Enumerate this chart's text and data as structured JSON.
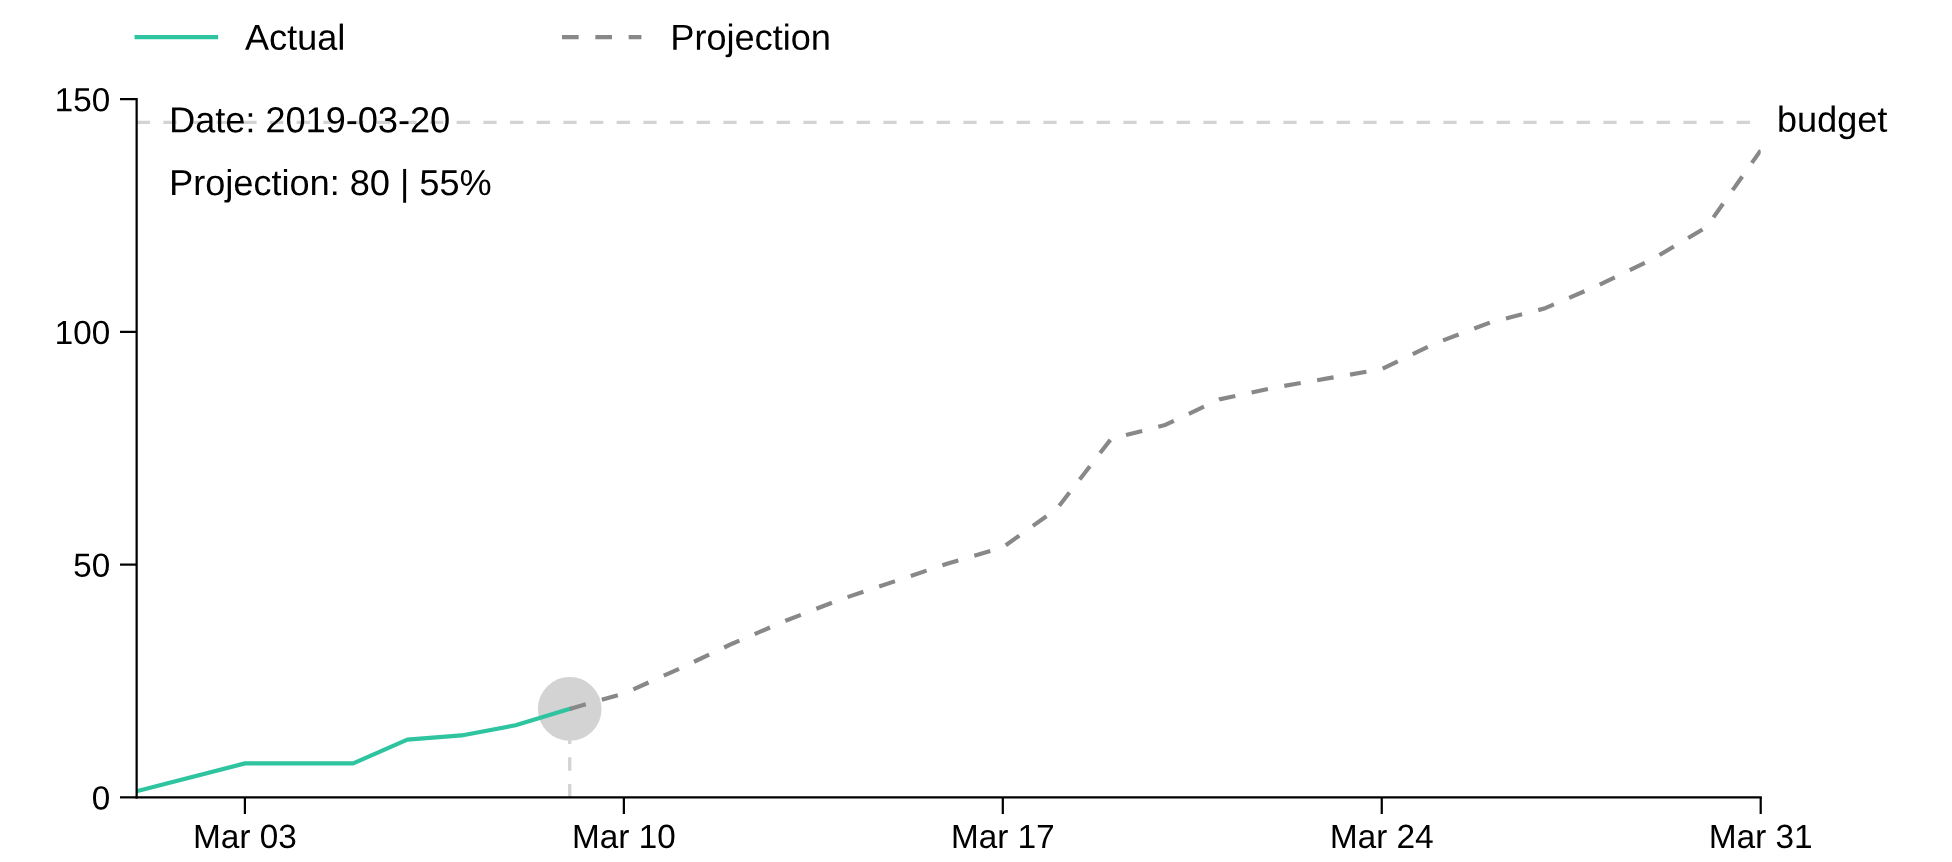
{
  "chart_data": {
    "type": "line",
    "xlim": [
      "2019-03-01",
      "2019-03-31"
    ],
    "xticks": [
      {
        "value": "2019-03-03",
        "label": "Mar 03"
      },
      {
        "value": "2019-03-10",
        "label": "Mar 10"
      },
      {
        "value": "2019-03-17",
        "label": "Mar 17"
      },
      {
        "value": "2019-03-24",
        "label": "Mar 24"
      },
      {
        "value": "2019-03-31",
        "label": "Mar 31"
      }
    ],
    "ylim": [
      0,
      150
    ],
    "yticks": [
      0,
      50,
      100,
      150
    ],
    "grid": false,
    "legend": "top",
    "series": [
      {
        "name": "Actual",
        "color": "#2ec4a0",
        "line_style": "solid",
        "x": [
          "2019-03-01",
          "2019-03-03",
          "2019-03-04",
          "2019-03-05",
          "2019-03-06",
          "2019-03-07",
          "2019-03-08",
          "2019-03-09"
        ],
        "values": [
          1.3,
          7.3,
          7.3,
          7.3,
          12.4,
          13.3,
          15.5,
          19
        ]
      },
      {
        "name": "Projection",
        "color": "#888888",
        "line_style": "dashed",
        "x": [
          "2019-03-09",
          "2019-03-10",
          "2019-03-11",
          "2019-03-12",
          "2019-03-13",
          "2019-03-14",
          "2019-03-15",
          "2019-03-16",
          "2019-03-17",
          "2019-03-18",
          "2019-03-19",
          "2019-03-20",
          "2019-03-21",
          "2019-03-22",
          "2019-03-23",
          "2019-03-24",
          "2019-03-25",
          "2019-03-26",
          "2019-03-27",
          "2019-03-28",
          "2019-03-29",
          "2019-03-30",
          "2019-03-31"
        ],
        "values": [
          19,
          22.3,
          27.5,
          33,
          38,
          42.5,
          46.4,
          50.3,
          53.7,
          62,
          77,
          80,
          85.5,
          88,
          90,
          92,
          97.6,
          102,
          105,
          110,
          115.6,
          122.5,
          139
        ]
      },
      {
        "type": "scatter",
        "color": "#d3d3d3",
        "marker": "circle",
        "x": [
          "2019-03-09"
        ],
        "values": [
          19
        ]
      }
    ],
    "ref_lines": [
      {
        "axis": "y",
        "value": 145,
        "label": "budget",
        "color": "#d3d3d3",
        "line_style": "dashed"
      }
    ],
    "annotations": [
      "Date: 2019-03-20",
      "Projection: 80 | 55%"
    ]
  }
}
